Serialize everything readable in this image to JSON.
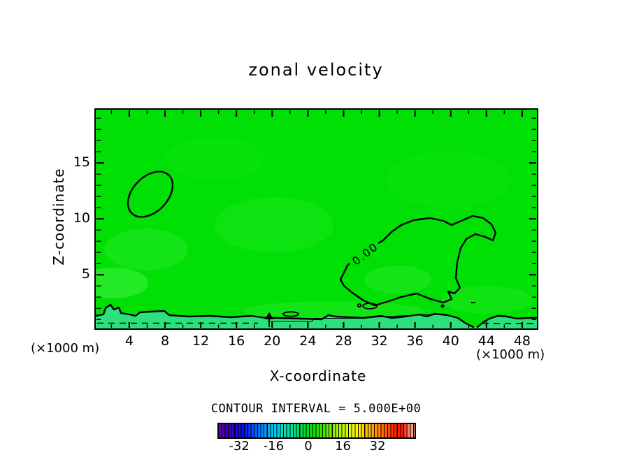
{
  "title": "zonal velocity",
  "chart_data": {
    "type": "contour",
    "title": "zonal velocity",
    "xlabel": "X-coordinate",
    "ylabel": "Z-coordinate",
    "x_unit_label": "(×1000 m)",
    "y_unit_label": "(×1000 m)",
    "xlim": [
      0.25,
      49.65
    ],
    "ylim": [
      0.2,
      19.76
    ],
    "x_major_ticks": [
      4,
      8,
      12,
      16,
      20,
      24,
      28,
      32,
      36,
      40,
      44,
      48
    ],
    "x_minor_tick_step": 2,
    "y_major_ticks": [
      5,
      10,
      15
    ],
    "y_minor_tick_step": 1,
    "grid": false,
    "contour_interval": 5.0,
    "contour_interval_text": "CONTOUR INTERVAL = 5.000E+00",
    "zero_contour_label": "0.00",
    "zero_contour_regions": [
      {
        "desc": "small closed cell",
        "x_range": [
          3.5,
          8.5
        ],
        "z_range": [
          10,
          14.5
        ]
      },
      {
        "desc": "large closed cell labelled 0.00",
        "x_range": [
          27,
          45
        ],
        "z_range": [
          2,
          10
        ]
      },
      {
        "desc": "near-surface undulating zero line with weak negative layer below",
        "x_range": [
          0.25,
          49.65
        ],
        "z_range": [
          0.2,
          1.5
        ]
      }
    ],
    "field_summary": "zonal velocity close to 0 over the whole domain (uniform green shading); slight negative values in a shallow layer below z~1 (dashed contour)",
    "colorbar": {
      "tick_labels": [
        "-32",
        "-16",
        "0",
        "16",
        "32"
      ],
      "tick_values": [
        -32,
        -16,
        0,
        16,
        32
      ],
      "tick_positions_pct": [
        10.4,
        28.0,
        45.7,
        63.4,
        81.1
      ],
      "gradient": [
        {
          "pos": 0,
          "color": "#66009e"
        },
        {
          "pos": 3,
          "color": "#4b00b4"
        },
        {
          "pos": 8,
          "color": "#2800d2"
        },
        {
          "pos": 13,
          "color": "#0014f0"
        },
        {
          "pos": 18,
          "color": "#0055ff"
        },
        {
          "pos": 23,
          "color": "#0096ff"
        },
        {
          "pos": 28,
          "color": "#00c8f0"
        },
        {
          "pos": 32,
          "color": "#00dcc8"
        },
        {
          "pos": 37,
          "color": "#00e09b"
        },
        {
          "pos": 42,
          "color": "#00dc55"
        },
        {
          "pos": 47,
          "color": "#00dc0a"
        },
        {
          "pos": 52,
          "color": "#32e600"
        },
        {
          "pos": 57,
          "color": "#78ee00"
        },
        {
          "pos": 62,
          "color": "#b4f500"
        },
        {
          "pos": 67,
          "color": "#e6fa00"
        },
        {
          "pos": 70,
          "color": "#ffff00"
        },
        {
          "pos": 75,
          "color": "#ffc800"
        },
        {
          "pos": 80,
          "color": "#ff9600"
        },
        {
          "pos": 85,
          "color": "#ff5f00"
        },
        {
          "pos": 90,
          "color": "#ff2800"
        },
        {
          "pos": 94,
          "color": "#fa1400"
        },
        {
          "pos": 97,
          "color": "#ff7d64"
        },
        {
          "pos": 100,
          "color": "#ffa898"
        }
      ]
    },
    "colors": {
      "field_base": "#00e005",
      "field_light": "#3cee3c",
      "near_surface_negative_band": "#2ce17d",
      "contour_line": "#000000"
    }
  }
}
